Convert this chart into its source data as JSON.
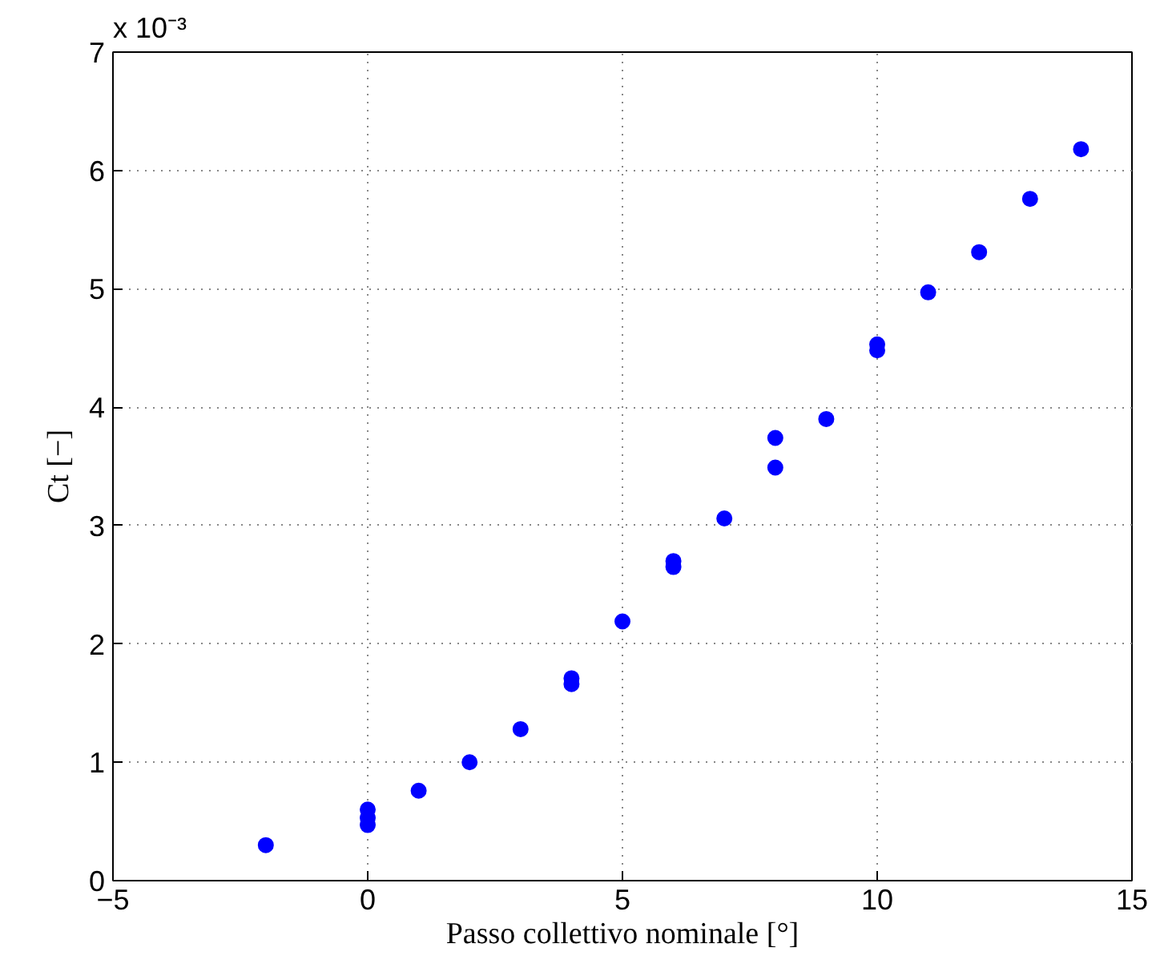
{
  "chart_data": {
    "type": "scatter",
    "xlabel": "Passo collettivo nominale [°]",
    "ylabel": "Ct [−]",
    "annotations": [
      "x 10⁻³"
    ],
    "x": [
      -2,
      0,
      0,
      0,
      1,
      2,
      3,
      4,
      4,
      5,
      6,
      6,
      7,
      8,
      8,
      9,
      10,
      10,
      11,
      12,
      13,
      14
    ],
    "series": [
      {
        "color": "#0000ff",
        "values": [
          0.3,
          0.47,
          0.53,
          0.6,
          0.76,
          1.0,
          1.28,
          1.66,
          1.71,
          2.19,
          2.65,
          2.7,
          3.06,
          3.49,
          3.74,
          3.9,
          4.48,
          4.53,
          4.97,
          5.31,
          5.76,
          6.18
        ]
      }
    ],
    "xlim": [
      -5,
      15
    ],
    "ylim": [
      0,
      7
    ],
    "xticks": [
      -5,
      0,
      5,
      10,
      15
    ],
    "yticks": [
      0,
      1,
      2,
      3,
      4,
      5,
      6,
      7
    ],
    "grid": true,
    "marker": "circle"
  }
}
